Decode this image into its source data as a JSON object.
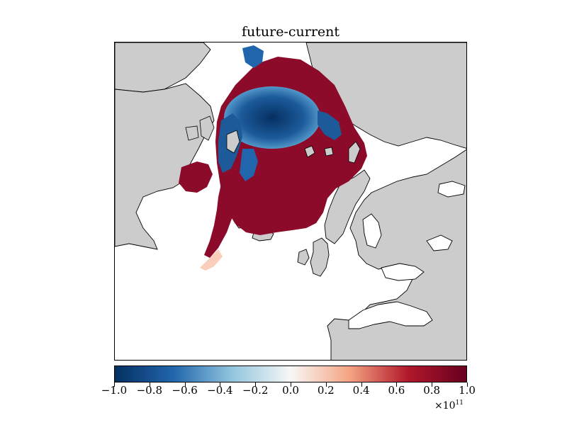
{
  "title": "future-current",
  "map": {
    "land_color": "#cccccc",
    "ocean_color": "#ffffff",
    "coastline_color": "#000000"
  },
  "colorbar": {
    "colormap": "RdBu_r",
    "min": -1.0,
    "max": 1.0,
    "ticks": [
      "−1.0",
      "−0.8",
      "−0.6",
      "−0.4",
      "−0.2",
      "0.0",
      "0.2",
      "0.4",
      "0.6",
      "0.8",
      "1.0"
    ],
    "multiplier_base": "×10",
    "multiplier_exp": "11",
    "colors": {
      "dark_blue": "#053061",
      "mid_blue": "#2166ac",
      "light_blue": "#92c5de",
      "white": "#f7f7f7",
      "light_red": "#f4a582",
      "mid_red": "#b2182b",
      "dark_red": "#67001f"
    }
  }
}
